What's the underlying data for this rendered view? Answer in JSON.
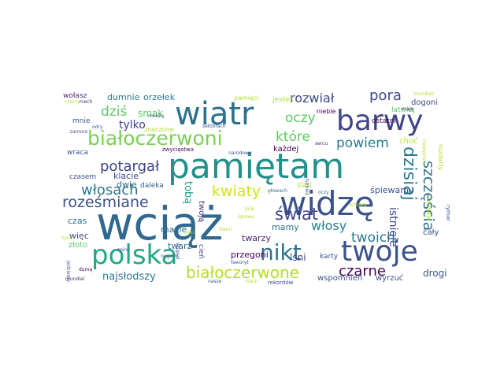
{
  "words": [
    {
      "text": "wciąż",
      "color": "#31688e"
    },
    {
      "text": "pamiętam",
      "color": "#21918c"
    },
    {
      "text": "widzę",
      "color": "#3b528b"
    },
    {
      "text": "twoje",
      "color": "#3b528b"
    },
    {
      "text": "wiatr",
      "color": "#2c728e"
    },
    {
      "text": "barwy",
      "color": "#414487"
    },
    {
      "text": "polska",
      "color": "#22a884"
    },
    {
      "text": "białoczerwoni",
      "color": "#7ad151"
    },
    {
      "text": "nikt",
      "color": "#2c728e"
    },
    {
      "text": "świat",
      "color": "#414487"
    },
    {
      "text": "białoczerwone",
      "color": "#b5de2b"
    },
    {
      "text": "roześmiane",
      "color": "#3b528b"
    },
    {
      "text": "dzisiaj",
      "color": "#2a788e"
    },
    {
      "text": "szczęścia",
      "color": "#2c728e"
    },
    {
      "text": "kwiaty",
      "color": "#d2e21b"
    },
    {
      "text": "potargał",
      "color": "#414487"
    },
    {
      "text": "włosach",
      "color": "#2a788e"
    },
    {
      "text": "rozwiał",
      "color": "#3e4989"
    },
    {
      "text": "oczy",
      "color": "#5ec962"
    },
    {
      "text": "powiem",
      "color": "#287c8e"
    },
    {
      "text": "które",
      "color": "#5ec962"
    },
    {
      "text": "pora",
      "color": "#3e4989"
    },
    {
      "text": "dziś",
      "color": "#5ec962"
    },
    {
      "text": "smak",
      "color": "#5ec962"
    },
    {
      "text": "włosy",
      "color": "#26828e"
    },
    {
      "text": "twoich",
      "color": "#2a788e"
    },
    {
      "text": "czarne",
      "color": "#440154"
    },
    {
      "text": "tylko",
      "color": "#414487"
    },
    {
      "text": "tobą",
      "color": "#1f9e89"
    },
    {
      "text": "najsłodszy",
      "color": "#2a788e"
    },
    {
      "text": "istnieje",
      "color": "#3e4989"
    },
    {
      "text": "dumnie",
      "color": "#2a788e"
    },
    {
      "text": "orzełek",
      "color": "#2a788e"
    },
    {
      "text": "twoją",
      "color": "#472d7b"
    },
    {
      "text": "mamy",
      "color": "#2c728e"
    },
    {
      "text": "klacie",
      "color": "#404688"
    },
    {
      "text": "dwie",
      "color": "#31688e"
    },
    {
      "text": "daleka",
      "color": "#355f8d"
    },
    {
      "text": "każdej",
      "color": "#440154"
    },
    {
      "text": "macie",
      "color": "#2c728e"
    },
    {
      "text": "twarz",
      "color": "#2c728e"
    },
    {
      "text": "twarzy",
      "color": "#482878"
    },
    {
      "text": "śpiewamy",
      "color": "#3b528b"
    },
    {
      "text": "przegoni",
      "color": "#440154"
    },
    {
      "text": "lśni",
      "color": "#3e4989"
    },
    {
      "text": "karty",
      "color": "#3b528b"
    },
    {
      "text": "cały",
      "color": "#3b528b"
    },
    {
      "text": "drogi",
      "color": "#3b528b"
    },
    {
      "text": "wyrzuć",
      "color": "#3b528b"
    },
    {
      "text": "wspomnień",
      "color": "#3b528b"
    },
    {
      "text": "czas",
      "color": "#2c728e"
    },
    {
      "text": "więc",
      "color": "#3e4989"
    },
    {
      "text": "złoto",
      "color": "#5ec962"
    },
    {
      "text": "czasem",
      "color": "#3b528b"
    },
    {
      "text": "wraca",
      "color": "#3b528b"
    },
    {
      "text": "mnie",
      "color": "#3b528b"
    },
    {
      "text": "wołasz",
      "color": "#482878"
    },
    {
      "text": "dogoni",
      "color": "#3b528b"
    },
    {
      "text": "choć",
      "color": "#b5de2b"
    },
    {
      "text": "łatwiej",
      "color": "#5ec962"
    },
    {
      "text": "ostatni",
      "color": "#440154"
    },
    {
      "text": "niebie",
      "color": "#440154"
    },
    {
      "text": "jesteś",
      "color": "#b5de2b"
    },
    {
      "text": "pamięci",
      "color": "#b5de2b"
    },
    {
      "text": "sercu",
      "color": "#482878"
    },
    {
      "text": "ślad",
      "color": "#b5de2b"
    },
    {
      "text": "głowach",
      "color": "#2c728e"
    },
    {
      "text": "turnieś",
      "color": "#3e4989"
    },
    {
      "text": "oczy",
      "color": "#2c728e"
    },
    {
      "text": "rozdaje",
      "color": "#b5de2b"
    },
    {
      "text": "zwycięstwa",
      "color": "#440154"
    },
    {
      "text": "narodowe",
      "color": "#3b528b"
    },
    {
      "text": "sektorach",
      "color": "#3b528b"
    },
    {
      "text": "znaczone",
      "color": "#b5de2b"
    },
    {
      "text": "mnożą",
      "color": "#3b528b"
    },
    {
      "text": "odry",
      "color": "#3b528b"
    },
    {
      "text": "czarny",
      "color": "#b5de2b"
    },
    {
      "text": "niech",
      "color": "#482878"
    },
    {
      "text": "mundiali",
      "color": "#b5de2b"
    },
    {
      "text": "mają",
      "color": "#482878"
    },
    {
      "text": "rozdarty",
      "color": "#b5de2b"
    },
    {
      "text": "rymar",
      "color": "#3b528b"
    },
    {
      "text": "schowa",
      "color": "#b5de2b"
    },
    {
      "text": "najwyższa",
      "color": "#b5de2b"
    },
    {
      "text": "nogami",
      "color": "#3b528b"
    },
    {
      "text": "faworyt",
      "color": "#3b528b"
    },
    {
      "text": "nasze",
      "color": "#3b528b"
    },
    {
      "text": "rekordów",
      "color": "#3b528b"
    },
    {
      "text": "łzach",
      "color": "#b5de2b"
    },
    {
      "text": "cień",
      "color": "#3b528b"
    },
    {
      "text": "dumą",
      "color": "#440154"
    },
    {
      "text": "mundial",
      "color": "#482878"
    },
    {
      "text": "jedziemy",
      "color": "#3b528b"
    },
    {
      "text": "póki",
      "color": "#b5de2b"
    },
    {
      "text": "tych",
      "color": "#b5de2b"
    },
    {
      "text": "zamoro",
      "color": "#3b528b"
    },
    {
      "text": "skupiał",
      "color": "#3b528b"
    },
    {
      "text": "spirci",
      "color": "#3b528b"
    },
    {
      "text": "śpiewa",
      "color": "#b5de2b"
    },
    {
      "text": "ziemi",
      "color": "#b5de2b"
    },
    {
      "text": "ręki",
      "color": "#b5de2b"
    }
  ]
}
